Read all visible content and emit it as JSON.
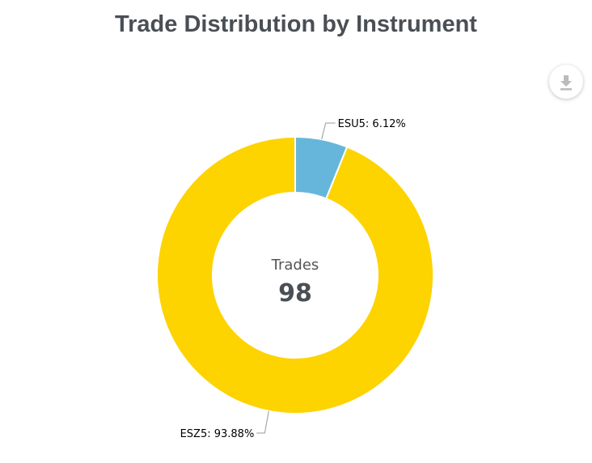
{
  "chart_data": {
    "type": "pie",
    "variant": "donut",
    "title": "Trade Distribution by Instrument",
    "center_label": "Trades",
    "center_value": "98",
    "slices": [
      {
        "name": "ESU5",
        "percent": 6.12,
        "label": "ESU5: 6.12%",
        "color": "#66b6dc"
      },
      {
        "name": "ESZ5",
        "percent": 93.88,
        "label": "ESZ5: 93.88%",
        "color": "#fdd300"
      }
    ]
  },
  "toolbar": {
    "download_icon": "download-icon"
  }
}
